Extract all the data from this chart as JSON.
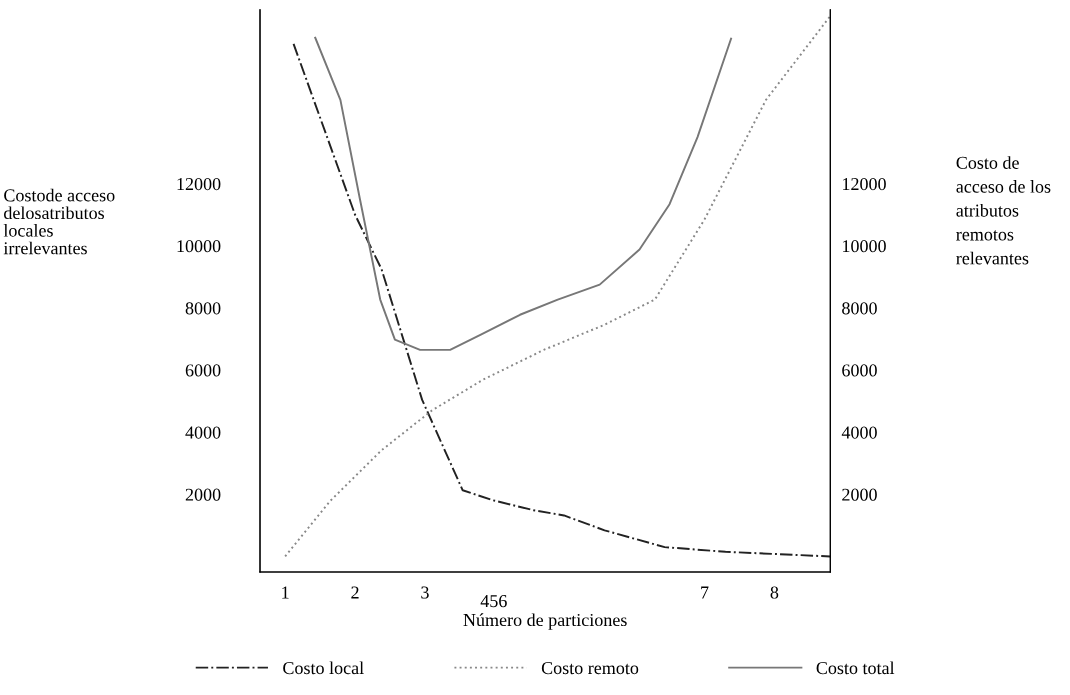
{
  "chart_data": {
    "type": "line",
    "xlabel": "Número de particiones",
    "ylabel": "Costode acceso\ndelosatributos\nlocales\nirrelevantes",
    "y2label": "Costo de\nacceso de los\natributos\nremotos\nrelevantes",
    "xlim": [
      0.64,
      8.8
    ],
    "xticks": [
      1,
      2,
      3,
      7,
      8
    ],
    "annotations": [
      "456"
    ],
    "ylim": [
      -500,
      17600
    ],
    "yticks": [
      2000,
      4000,
      6000,
      8000,
      10000,
      12000
    ],
    "y2lim": [
      -500,
      17600
    ],
    "y2ticks": [
      2000,
      4000,
      6000,
      8000,
      10000,
      12000
    ],
    "grid": false,
    "legend": "bottom",
    "series": [
      {
        "name": "Costo local",
        "color": "#222222",
        "line_style": "dashdot",
        "x": [
          1.12,
          1.6,
          2.0,
          2.38,
          2.96,
          3.54,
          3.97,
          4.55,
          4.99,
          5.57,
          6.43,
          7.3,
          8.8
        ],
        "values": [
          16500,
          13500,
          11000,
          9240,
          5040,
          2130,
          1810,
          1490,
          1320,
          840,
          300,
          150,
          0
        ]
      },
      {
        "name": "Costo remoto",
        "color": "#888888",
        "line_style": "dotted",
        "x": [
          1.0,
          1.65,
          2.38,
          3.1,
          3.83,
          4.7,
          5.57,
          6.29,
          7.0,
          7.88,
          8.8
        ],
        "values": [
          0,
          1800,
          3420,
          4700,
          5690,
          6650,
          7460,
          8270,
          10850,
          14700,
          17400
        ]
      },
      {
        "name": "Costo total",
        "color": "#777777",
        "line_style": "solid",
        "x": [
          1.43,
          1.79,
          2.07,
          2.36,
          2.57,
          2.93,
          3.36,
          3.8,
          4.36,
          4.9,
          5.5,
          6.07,
          6.5,
          6.9,
          7.38
        ],
        "values": [
          16700,
          14700,
          11500,
          8270,
          6980,
          6650,
          6650,
          7140,
          7780,
          8270,
          8750,
          9880,
          11340,
          13500,
          16670
        ]
      }
    ]
  }
}
